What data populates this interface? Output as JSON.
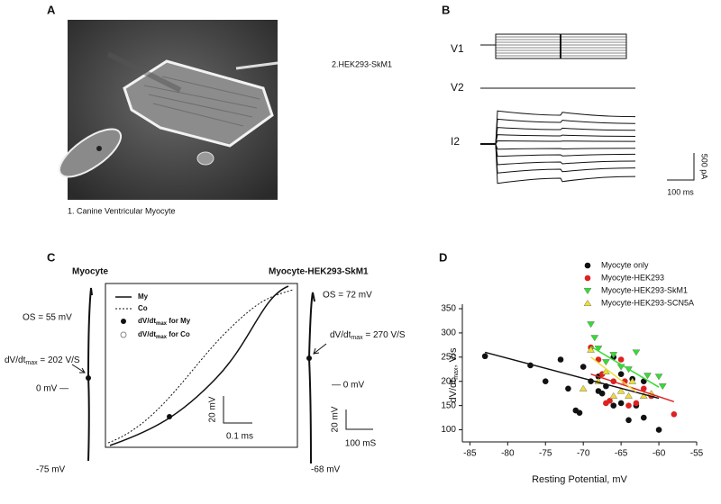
{
  "panels": {
    "A": {
      "label": "A",
      "cell2": "2.HEK293-SkM1",
      "cell1": "1. Canine Ventricular Myocyte"
    },
    "B": {
      "label": "B",
      "v1": "V1",
      "v2": "V2",
      "i2": "I2",
      "scale_y": "500 pA",
      "scale_x": "100 ms"
    },
    "C": {
      "label": "C",
      "left": {
        "title": "Myocyte",
        "os": "OS = 55 mV",
        "dvdt": [
          "dV/dt",
          "max",
          " = 202 V/S"
        ],
        "zero": "0 mV —",
        "rest": "-75 mV"
      },
      "right": {
        "title": "Myocyte-HEK293-SkM1",
        "os": "OS = 72 mV",
        "dvdt": [
          "dV/dt",
          "max",
          " = 270 V/S"
        ],
        "zero": "— 0 mV",
        "rest": "-68 mV",
        "scale_y": "20 mV",
        "scale_x": "100 mS"
      },
      "inset": {
        "my": "My",
        "co": "Co",
        "dot_my": [
          "dV/dt",
          "max",
          " for My"
        ],
        "dot_co": [
          "dV/dt",
          "max",
          " for Co"
        ],
        "scale_y": "20 mV",
        "scale_x": "0.1 ms"
      }
    },
    "D": {
      "label": "D"
    }
  },
  "chart_data": {
    "type": "scatter",
    "xlabel": "Resting Potential, mV",
    "ylabel": [
      "dV/dt",
      "max",
      ", V/s"
    ],
    "xlim": [
      -86,
      -55
    ],
    "xticks": [
      -85,
      -80,
      -75,
      -70,
      -65,
      -60,
      -55
    ],
    "ylim": [
      75,
      350
    ],
    "yticks": [
      100,
      150,
      200,
      250,
      300,
      350
    ],
    "series": [
      {
        "name": "Myocyte only",
        "color": "#111111",
        "marker": "circle",
        "x": [
          -83,
          -77,
          -75,
          -73,
          -72,
          -71,
          -70.5,
          -69,
          -68,
          -68,
          -67.5,
          -67,
          -66,
          -65,
          -65,
          -64,
          -63.5,
          -63,
          -62,
          -61,
          -60,
          -70,
          -66,
          -62
        ],
        "y": [
          252,
          233,
          200,
          245,
          185,
          140,
          135,
          200,
          210,
          180,
          175,
          190,
          150,
          155,
          215,
          120,
          205,
          150,
          125,
          170,
          100,
          230,
          250,
          200
        ],
        "trend": {
          "x": [
            -83,
            -60
          ],
          "y": [
            260,
            165
          ]
        }
      },
      {
        "name": "Myocyte-HEK293",
        "color": "#dd2222",
        "marker": "circle",
        "x": [
          -69,
          -68,
          -67.5,
          -67,
          -66.5,
          -66,
          -65,
          -64,
          -63,
          -62,
          -61,
          -58,
          -64.5
        ],
        "y": [
          270,
          245,
          215,
          155,
          160,
          200,
          245,
          150,
          155,
          185,
          170,
          132,
          200
        ],
        "trend": {
          "x": [
            -69,
            -58
          ],
          "y": [
            215,
            158
          ]
        }
      },
      {
        "name": "Myocyte-HEK293-SkM1",
        "color": "#33dd33",
        "marker": "triangle-down",
        "x": [
          -69,
          -68.5,
          -68,
          -67,
          -66,
          -65,
          -64,
          -63,
          -61.5,
          -60,
          -59.5
        ],
        "y": [
          318,
          290,
          268,
          240,
          255,
          230,
          225,
          260,
          212,
          210,
          190
        ],
        "trend": {
          "x": [
            -69,
            -60
          ],
          "y": [
            272,
            188
          ]
        }
      },
      {
        "name": "Myocyte-HEK293-SCN5A",
        "color": "#eedd33",
        "marker": "triangle-up",
        "x": [
          -70,
          -69,
          -68,
          -67,
          -66,
          -65,
          -64,
          -62,
          -61,
          -63.5
        ],
        "y": [
          185,
          265,
          200,
          220,
          170,
          180,
          170,
          170,
          175,
          200
        ],
        "trend": {
          "x": [
            -69,
            -63
          ],
          "y": [
            250,
            178
          ]
        }
      }
    ]
  }
}
